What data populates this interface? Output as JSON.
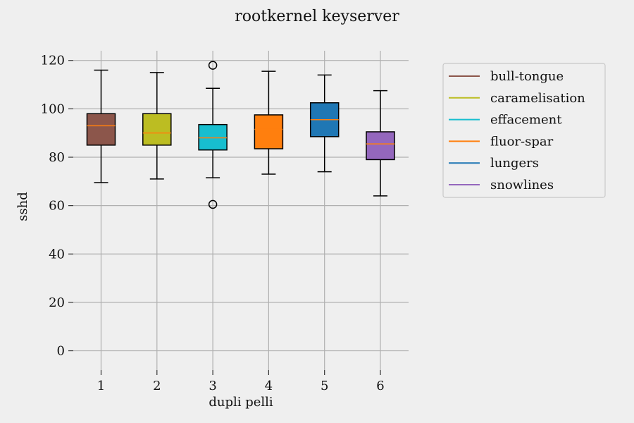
{
  "chart_data": {
    "type": "boxplot",
    "title": "rootkernel keyserver",
    "xlabel": "dupli pelli",
    "ylabel": "sshd",
    "ylim": [
      -8,
      124
    ],
    "yticks": [
      0,
      20,
      40,
      60,
      80,
      100,
      120
    ],
    "grid": true,
    "legend_position": "outside-right",
    "categories": [
      "1",
      "2",
      "3",
      "4",
      "5",
      "6"
    ],
    "series": [
      {
        "name": "bull-tongue",
        "color": "#8c564b",
        "whisker_low": 69.5,
        "q1": 85.0,
        "median": 93.0,
        "q3": 98.0,
        "whisker_high": 116.0,
        "outliers": []
      },
      {
        "name": "caramelisation",
        "color": "#bcbd22",
        "whisker_low": 71.0,
        "q1": 85.0,
        "median": 90.0,
        "q3": 98.0,
        "whisker_high": 115.0,
        "outliers": []
      },
      {
        "name": "effacement",
        "color": "#17becf",
        "whisker_low": 71.5,
        "q1": 83.0,
        "median": 88.0,
        "q3": 93.5,
        "whisker_high": 108.5,
        "outliers": [
          118.0,
          60.5
        ]
      },
      {
        "name": "fluor-spar",
        "color": "#ff7f0e",
        "whisker_low": 73.0,
        "q1": 83.5,
        "median": 91.5,
        "q3": 97.5,
        "whisker_high": 115.5,
        "outliers": []
      },
      {
        "name": "lungers",
        "color": "#1f77b4",
        "whisker_low": 74.0,
        "q1": 88.5,
        "median": 95.5,
        "q3": 102.5,
        "whisker_high": 114.0,
        "outliers": []
      },
      {
        "name": "snowlines",
        "color": "#9467bd",
        "whisker_low": 64.0,
        "q1": 79.0,
        "median": 85.5,
        "q3": 90.5,
        "whisker_high": 107.5,
        "outliers": []
      }
    ],
    "median_color": "#ff7f0e"
  }
}
